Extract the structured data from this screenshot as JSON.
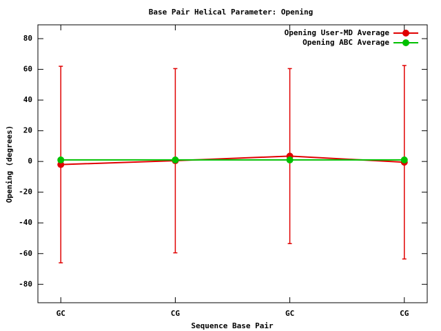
{
  "chart_data": {
    "type": "line",
    "title": "Base Pair Helical Parameter: Opening",
    "x_label": "Sequence Base Pair",
    "y_label": "Opening (degrees)",
    "categories": [
      "GC",
      "CG",
      "GC",
      "CG"
    ],
    "series": [
      {
        "name": "Opening User-MD Average",
        "color": "#e00000",
        "values": [
          -2,
          0.5,
          3.5,
          -0.5
        ],
        "errors": [
          64,
          60,
          57,
          63
        ]
      },
      {
        "name": "Opening ABC Average",
        "color": "#00c000",
        "values": [
          1,
          1,
          1,
          1
        ]
      }
    ],
    "ylim": [
      -92,
      89
    ],
    "yticks": [
      -80,
      -60,
      -40,
      -20,
      0,
      20,
      40,
      60,
      80
    ],
    "grid": false,
    "legend": "top-right"
  }
}
